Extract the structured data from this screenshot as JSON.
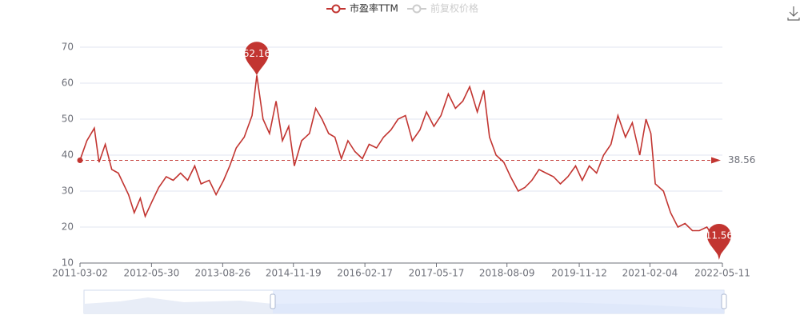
{
  "chart_data": {
    "type": "line",
    "series": [
      {
        "name": "市盈率TTM",
        "color": "#c23531",
        "x": [
          "2011-03-02",
          "2011-04-15",
          "2011-06-01",
          "2011-07-01",
          "2011-08-10",
          "2011-09-20",
          "2011-11-01",
          "2012-01-05",
          "2012-02-10",
          "2012-03-20",
          "2012-04-20",
          "2012-06-01",
          "2012-07-15",
          "2012-09-01",
          "2012-10-15",
          "2012-12-01",
          "2013-01-15",
          "2013-03-01",
          "2013-04-10",
          "2013-06-01",
          "2013-07-15",
          "2013-09-01",
          "2013-10-10",
          "2013-11-20",
          "2014-01-10",
          "2014-03-01",
          "2014-03-31",
          "2014-05-10",
          "2014-06-20",
          "2014-08-01",
          "2014-09-10",
          "2014-10-20",
          "2014-11-25",
          "2015-01-10",
          "2015-03-01",
          "2015-04-10",
          "2015-05-20",
          "2015-07-01",
          "2015-08-10",
          "2015-09-20",
          "2015-11-01",
          "2015-12-15",
          "2016-02-01",
          "2016-03-15",
          "2016-05-01",
          "2016-06-15",
          "2016-08-01",
          "2016-09-15",
          "2016-11-01",
          "2016-12-15",
          "2017-02-01",
          "2017-03-15",
          "2017-05-01",
          "2017-06-15",
          "2017-08-01",
          "2017-09-15",
          "2017-11-01",
          "2017-12-15",
          "2018-02-01",
          "2018-03-15",
          "2018-04-20",
          "2018-06-01",
          "2018-07-20",
          "2018-09-01",
          "2018-10-20",
          "2018-12-01",
          "2019-01-15",
          "2019-03-01",
          "2019-04-15",
          "2019-06-01",
          "2019-07-15",
          "2019-09-01",
          "2019-10-20",
          "2019-12-01",
          "2020-01-15",
          "2020-03-01",
          "2020-04-15",
          "2020-06-01",
          "2020-07-15",
          "2020-09-01",
          "2020-10-15",
          "2020-12-01",
          "2021-01-10",
          "2021-02-10",
          "2021-03-10",
          "2021-05-01",
          "2021-06-15",
          "2021-08-01",
          "2021-09-15",
          "2021-11-01",
          "2021-12-15",
          "2022-02-01",
          "2022-03-20",
          "2022-04-20",
          "2022-05-11"
        ],
        "values": [
          38.6,
          44,
          47.5,
          38,
          43,
          36,
          35,
          29,
          24,
          28,
          23,
          27,
          31,
          34,
          33,
          35,
          33,
          37,
          32,
          33,
          29,
          33,
          37,
          42,
          45,
          51,
          62.16,
          50,
          46,
          55,
          44,
          48,
          37,
          44,
          46,
          53,
          50,
          46,
          45,
          39,
          44,
          41,
          39,
          43,
          42,
          45,
          47,
          50,
          51,
          44,
          47,
          52,
          48,
          51,
          57,
          53,
          55,
          59,
          52,
          58,
          45,
          40,
          38,
          34,
          30,
          31,
          33,
          36,
          35,
          34,
          32,
          34,
          37,
          33,
          37,
          35,
          40,
          43,
          51,
          45,
          49,
          40,
          50,
          46,
          32,
          30,
          24,
          20,
          21,
          19,
          19,
          20,
          17,
          11.56,
          14.5
        ]
      }
    ],
    "inactive_legend": {
      "name": "前复权价格",
      "color": "#cccccc"
    },
    "max_index": 26,
    "min_index": 93,
    "average": 38.56,
    "xlim": [
      "2011-03-02",
      "2022-05-11"
    ],
    "xticks": [
      "2011-03-02",
      "2012-05-30",
      "2013-08-26",
      "2014-11-19",
      "2016-02-17",
      "2017-05-17",
      "2018-08-09",
      "2019-11-12",
      "2021-02-04",
      "2022-05-11"
    ],
    "ylim": [
      10,
      70
    ],
    "yticks": [
      10,
      20,
      30,
      40,
      50,
      60,
      70
    ],
    "grid": true
  }
}
